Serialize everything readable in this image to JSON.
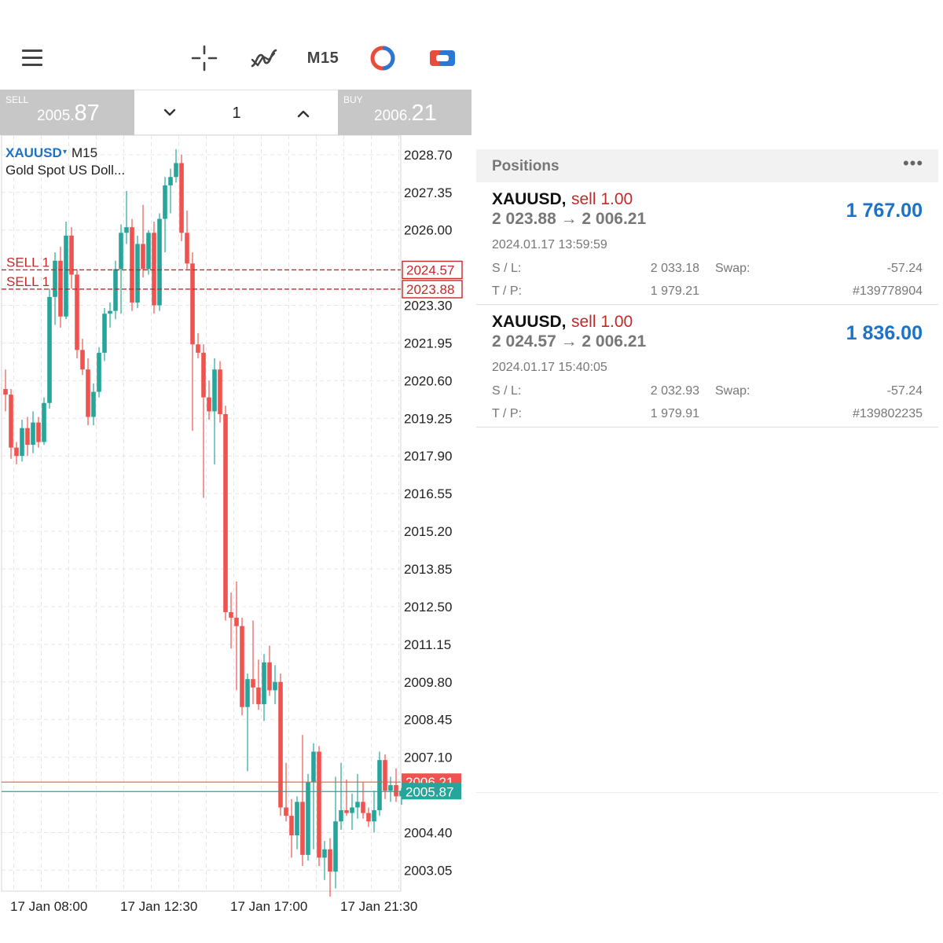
{
  "toolbar": {
    "menu_icon": "hamburger-menu-icon",
    "crosshair_icon": "crosshair-icon",
    "indicators_icon": "indicators-icon",
    "timeframe": "M15",
    "one_click_icon": "one-click-trading-icon",
    "trade_icon": "new-order-icon"
  },
  "trade_panel": {
    "sell_label": "SELL",
    "sell_price_main": "2005.",
    "sell_price_big": "87",
    "buy_label": "BUY",
    "buy_price_main": "2006.",
    "buy_price_big": "21",
    "volume": "1"
  },
  "chart": {
    "symbol": "XAUUSD",
    "symbol_arrow": "▾",
    "timeframe": "M15",
    "description": "Gold Spot US Doll...",
    "colors": {
      "bull": "#26a69a",
      "bear": "#ef5350",
      "grid": "#e6e6e6",
      "order_line": "#c62828"
    }
  },
  "chart_data": {
    "type": "candlestick",
    "price_axis_labels": [
      "2028.70",
      "2027.35",
      "2026.00",
      "2023.30",
      "2021.95",
      "2020.60",
      "2019.25",
      "2017.90",
      "2016.55",
      "2015.20",
      "2013.85",
      "2012.50",
      "2011.15",
      "2009.80",
      "2008.45",
      "2007.10",
      "2004.40",
      "2003.05"
    ],
    "price_axis_values": [
      2028.7,
      2027.35,
      2026.0,
      2023.3,
      2021.95,
      2020.6,
      2019.25,
      2017.9,
      2016.55,
      2015.2,
      2013.85,
      2012.5,
      2011.15,
      2009.8,
      2008.45,
      2007.1,
      2004.4,
      2003.05
    ],
    "ylim": [
      2002.3,
      2029.4
    ],
    "time_labels": [
      "17 Jan 08:00",
      "17 Jan 12:30",
      "17 Jan 17:00",
      "17 Jan 21:30"
    ],
    "time_label_candle_index": [
      2,
      22,
      42,
      62
    ],
    "order_lines": [
      {
        "label": "SELL 1",
        "price": 2024.57,
        "price_label": "2024.57"
      },
      {
        "label": "SELL 1",
        "price": 2023.88,
        "price_label": "2023.88"
      }
    ],
    "bid": {
      "price": 2005.87,
      "label": "2005.87",
      "color": "#26a69a"
    },
    "ask": {
      "price": 2006.21,
      "label": "2006.21",
      "color": "#ef5350"
    },
    "candles": [
      [
        2020.3,
        2021.0,
        2019.5,
        2020.1
      ],
      [
        2020.1,
        2020.3,
        2017.8,
        2018.2
      ],
      [
        2018.2,
        2018.4,
        2017.6,
        2017.9
      ],
      [
        2017.9,
        2019.2,
        2017.7,
        2018.9
      ],
      [
        2018.9,
        2019.3,
        2017.9,
        2018.3
      ],
      [
        2018.3,
        2019.5,
        2018.0,
        2019.1
      ],
      [
        2019.1,
        2019.3,
        2018.2,
        2018.4
      ],
      [
        2018.4,
        2020.0,
        2018.3,
        2019.8
      ],
      [
        2019.8,
        2023.9,
        2019.6,
        2023.6
      ],
      [
        2023.6,
        2025.2,
        2022.6,
        2024.9
      ],
      [
        2024.9,
        2025.4,
        2022.5,
        2022.9
      ],
      [
        2022.9,
        2026.3,
        2022.8,
        2025.8
      ],
      [
        2025.8,
        2026.1,
        2023.9,
        2024.4
      ],
      [
        2024.4,
        2024.6,
        2021.4,
        2021.7
      ],
      [
        2021.7,
        2022.1,
        2020.8,
        2021.0
      ],
      [
        2021.0,
        2021.4,
        2019.0,
        2019.3
      ],
      [
        2019.3,
        2020.5,
        2019.0,
        2020.2
      ],
      [
        2020.2,
        2021.8,
        2020.0,
        2021.6
      ],
      [
        2021.6,
        2023.2,
        2021.3,
        2023.0
      ],
      [
        2023.0,
        2023.4,
        2022.5,
        2023.1
      ],
      [
        2023.1,
        2024.9,
        2022.8,
        2024.6
      ],
      [
        2024.6,
        2026.2,
        2023.0,
        2025.9
      ],
      [
        2025.9,
        2027.4,
        2025.5,
        2026.1
      ],
      [
        2026.1,
        2026.4,
        2023.1,
        2023.4
      ],
      [
        2023.4,
        2025.8,
        2023.2,
        2025.5
      ],
      [
        2025.5,
        2026.9,
        2024.3,
        2024.6
      ],
      [
        2024.6,
        2026.0,
        2024.4,
        2025.9
      ],
      [
        2025.9,
        2026.3,
        2023.0,
        2023.3
      ],
      [
        2023.3,
        2026.6,
        2023.1,
        2026.4
      ],
      [
        2026.4,
        2027.9,
        2025.2,
        2027.6
      ],
      [
        2027.6,
        2028.2,
        2026.6,
        2027.9
      ],
      [
        2027.9,
        2028.9,
        2027.7,
        2028.4
      ],
      [
        2028.4,
        2028.7,
        2025.6,
        2025.9
      ],
      [
        2025.9,
        2026.7,
        2024.6,
        2024.8
      ],
      [
        2024.8,
        2025.2,
        2018.8,
        2021.9
      ],
      [
        2021.9,
        2022.3,
        2021.4,
        2021.6
      ],
      [
        2021.6,
        2021.9,
        2016.4,
        2020.0
      ],
      [
        2020.0,
        2020.6,
        2019.2,
        2019.5
      ],
      [
        2019.5,
        2021.4,
        2017.6,
        2021.0
      ],
      [
        2021.0,
        2021.3,
        2019.1,
        2019.4
      ],
      [
        2019.4,
        2019.7,
        2012.0,
        2012.3
      ],
      [
        2012.3,
        2013.0,
        2011.0,
        2012.1
      ],
      [
        2012.1,
        2013.4,
        2009.5,
        2011.8
      ],
      [
        2011.8,
        2012.1,
        2008.6,
        2008.9
      ],
      [
        2008.9,
        2010.1,
        2006.6,
        2009.9
      ],
      [
        2009.9,
        2012.0,
        2009.0,
        2009.6
      ],
      [
        2009.6,
        2010.6,
        2008.8,
        2009.0
      ],
      [
        2009.0,
        2010.8,
        2008.4,
        2010.5
      ],
      [
        2010.5,
        2011.1,
        2009.3,
        2009.5
      ],
      [
        2009.5,
        2010.4,
        2009.0,
        2009.8
      ],
      [
        2009.8,
        2010.1,
        2005.0,
        2005.3
      ],
      [
        2005.3,
        2006.9,
        2004.8,
        2005.0
      ],
      [
        2005.0,
        2005.6,
        2003.5,
        2004.3
      ],
      [
        2004.3,
        2005.7,
        2003.8,
        2005.5
      ],
      [
        2005.5,
        2007.9,
        2003.2,
        2003.6
      ],
      [
        2003.6,
        2006.5,
        2003.4,
        2006.2
      ],
      [
        2006.2,
        2007.6,
        2003.8,
        2007.3
      ],
      [
        2007.3,
        2007.5,
        2003.2,
        2003.5
      ],
      [
        2003.5,
        2004.1,
        2002.7,
        2003.8
      ],
      [
        2003.8,
        2004.2,
        2002.1,
        2003.0
      ],
      [
        2003.0,
        2006.4,
        2002.4,
        2004.8
      ],
      [
        2004.8,
        2006.9,
        2004.5,
        2005.2
      ],
      [
        2005.2,
        2006.3,
        2005.0,
        2005.1
      ],
      [
        2005.1,
        2005.8,
        2004.5,
        2005.3
      ],
      [
        2005.3,
        2006.5,
        2004.9,
        2005.5
      ],
      [
        2005.5,
        2006.2,
        2004.9,
        2005.1
      ],
      [
        2005.1,
        2005.3,
        2004.6,
        2004.8
      ],
      [
        2004.8,
        2005.9,
        2004.4,
        2005.2
      ],
      [
        2005.2,
        2007.3,
        2005.0,
        2007.0
      ],
      [
        2007.0,
        2007.2,
        2005.6,
        2005.9
      ],
      [
        2005.9,
        2006.4,
        2005.5,
        2006.1
      ],
      [
        2006.1,
        2006.7,
        2005.5,
        2005.7
      ],
      [
        2005.7,
        2006.0,
        2005.4,
        2005.9
      ]
    ]
  },
  "positions": {
    "title": "Positions",
    "more_icon": "more-dots-icon",
    "items": [
      {
        "symbol": "XAUUSD,",
        "side": "sell 1.00",
        "prices": "2 023.88 → 2 006.21",
        "profit": "1 767.00",
        "time": "2024.01.17 13:59:59",
        "sl_label": "S / L:",
        "sl": "2 033.18",
        "swap_label": "Swap:",
        "swap": "-57.24",
        "tp_label": "T / P:",
        "tp": "1 979.21",
        "ticket": "#139778904"
      },
      {
        "symbol": "XAUUSD,",
        "side": "sell 1.00",
        "prices": "2 024.57 → 2 006.21",
        "profit": "1 836.00",
        "time": "2024.01.17 15:40:05",
        "sl_label": "S / L:",
        "sl": "2 032.93",
        "swap_label": "Swap:",
        "swap": "-57.24",
        "tp_label": "T / P:",
        "tp": "1 979.91",
        "ticket": "#139802235"
      }
    ]
  }
}
